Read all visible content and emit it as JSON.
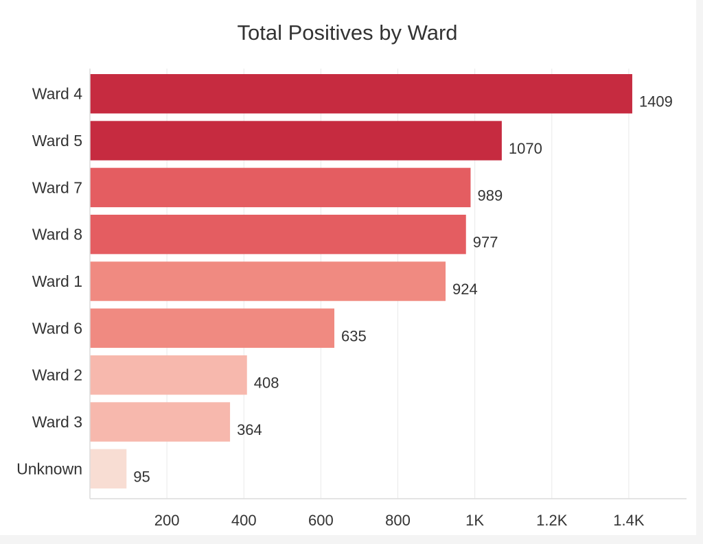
{
  "chart_data": {
    "type": "bar",
    "orientation": "horizontal",
    "title": "Total Positives by Ward",
    "categories": [
      "Ward 4",
      "Ward 5",
      "Ward 7",
      "Ward 8",
      "Ward 1",
      "Ward 6",
      "Ward 2",
      "Ward 3",
      "Unknown"
    ],
    "values": [
      1409,
      1070,
      989,
      977,
      924,
      635,
      408,
      364,
      95
    ],
    "colors": [
      "#c62b40",
      "#c62b40",
      "#e45d61",
      "#e45d61",
      "#f08a81",
      "#f08a81",
      "#f7b8ad",
      "#f7b8ad",
      "#f8ddd3"
    ],
    "xlim": [
      0,
      1550
    ],
    "x_ticks": [
      {
        "value": 200,
        "label": "200"
      },
      {
        "value": 400,
        "label": "400"
      },
      {
        "value": 600,
        "label": "600"
      },
      {
        "value": 800,
        "label": "800"
      },
      {
        "value": 1000,
        "label": "1K"
      },
      {
        "value": 1200,
        "label": "1.2K"
      },
      {
        "value": 1400,
        "label": "1.4K"
      }
    ],
    "data_labels": true,
    "grid": "vertical",
    "legend": "none"
  }
}
